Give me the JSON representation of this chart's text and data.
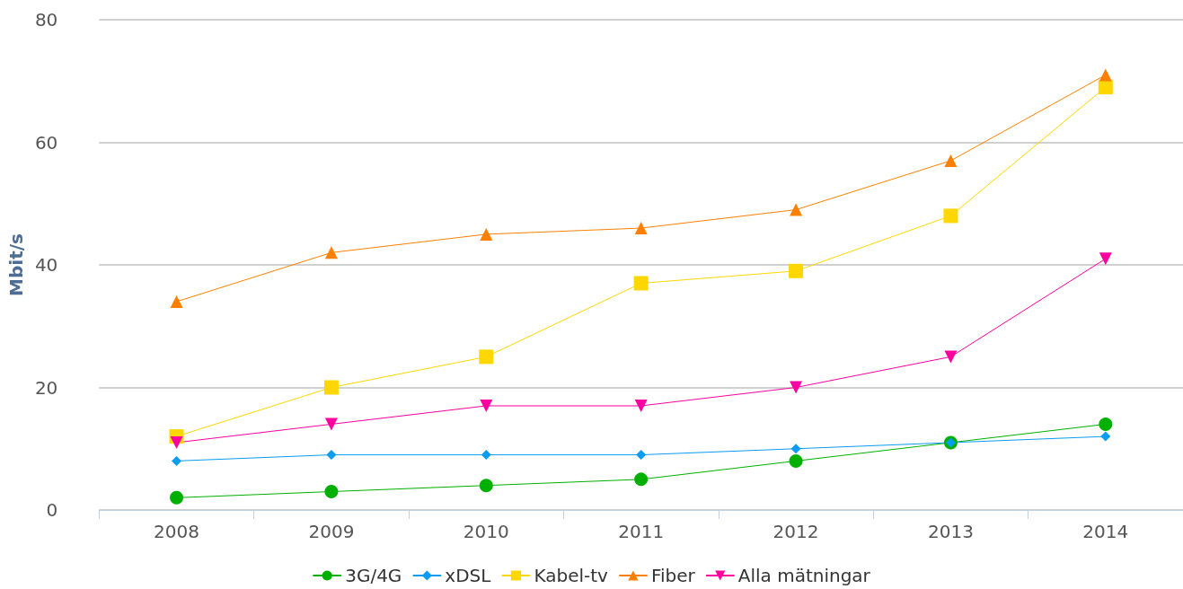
{
  "chart_data": {
    "type": "line",
    "ylabel": "Mbit/s",
    "categories": [
      "2008",
      "2009",
      "2010",
      "2011",
      "2012",
      "2013",
      "2014"
    ],
    "series": [
      {
        "name": "3G/4G",
        "color": "#00b000",
        "marker": "circle",
        "values": [
          2,
          3,
          4,
          5,
          8,
          11,
          14
        ]
      },
      {
        "name": "xDSL",
        "color": "#0a9cf0",
        "marker": "diamond",
        "values": [
          8,
          9,
          9,
          9,
          10,
          11,
          12
        ]
      },
      {
        "name": "Kabel-tv",
        "color": "#ffd700",
        "marker": "square",
        "values": [
          12,
          20,
          25,
          37,
          39,
          48,
          69
        ]
      },
      {
        "name": "Fiber",
        "color": "#ff8000",
        "marker": "triangle",
        "values": [
          34,
          42,
          45,
          46,
          49,
          57,
          71
        ]
      },
      {
        "name": "Alla mätningar",
        "color": "#ff00a0",
        "marker": "triangle-down",
        "values": [
          11,
          14,
          17,
          17,
          20,
          25,
          41
        ]
      }
    ],
    "ylim": [
      0,
      80
    ],
    "yticks": [
      0,
      20,
      40,
      60,
      80
    ],
    "grid": "y",
    "legend": "bottom"
  }
}
